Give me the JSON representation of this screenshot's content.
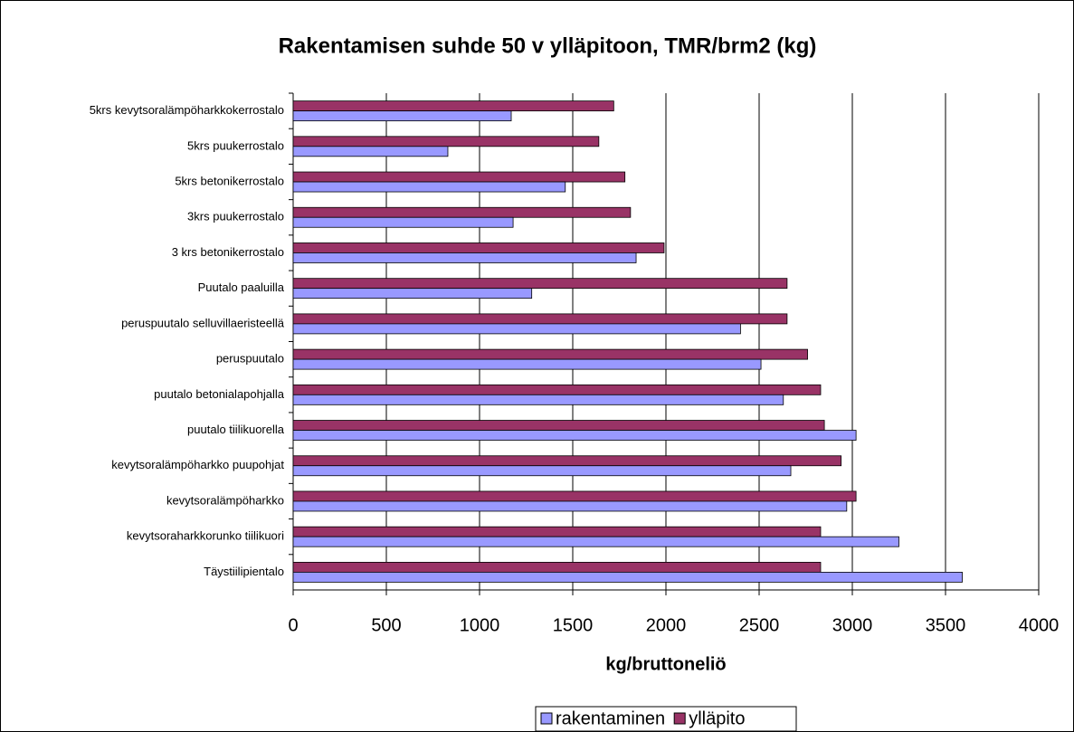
{
  "chart_data": {
    "type": "hbar",
    "title": "Rakentamisen suhde 50 v ylläpitoon, TMR/brm2 (kg)",
    "xlabel": "kg/bruttoneliö",
    "categories": [
      "5krs kevytsoralämpöharkkokerrostalo",
      "5krs puukerrostalo",
      "5krs betonikerrostalo",
      "3krs puukerrostalo",
      "3 krs betonikerrostalo",
      "Puutalo paaluilla",
      "peruspuutalo selluvillaeristeellä",
      "peruspuutalo",
      "puutalo betonialapohjalla",
      "puutalo tiilikuorella",
      "kevytsoralämpöharkko puupohjat",
      "kevytsoralämpöharkko",
      "kevytsoraharkkorunko tiilikuori",
      "Täystiilipientalo"
    ],
    "series": [
      {
        "name": "rakentaminen",
        "color": "#9999ff",
        "values": [
          1170,
          830,
          1460,
          1180,
          1840,
          1280,
          2400,
          2510,
          2630,
          3020,
          2670,
          2970,
          3250,
          3590
        ]
      },
      {
        "name": "ylläpito",
        "color": "#993366",
        "values": [
          1720,
          1640,
          1780,
          1810,
          1990,
          2650,
          2650,
          2760,
          2830,
          2850,
          2940,
          3020,
          2830,
          2830
        ]
      }
    ],
    "xlim": [
      0,
      4000
    ],
    "xticks": [
      0,
      500,
      1000,
      1500,
      2000,
      2500,
      3000,
      3500,
      4000
    ],
    "grid": true,
    "legend": "bottom"
  }
}
